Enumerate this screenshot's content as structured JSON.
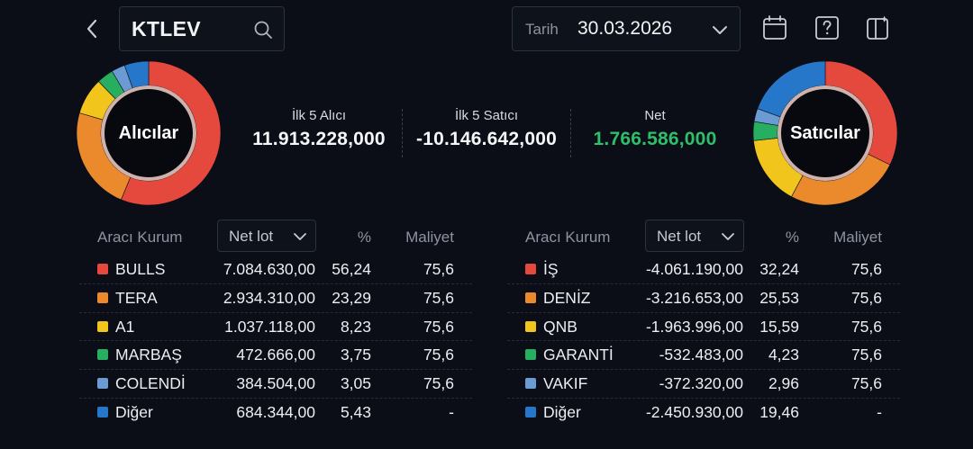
{
  "header": {
    "search_value": "KTLEV",
    "date_label": "Tarih",
    "date_value": "30.03.2026"
  },
  "colors": {
    "red": "#e5483d",
    "orange": "#ea8a2c",
    "yellow": "#f2c51d",
    "green": "#27ae60",
    "lightblue": "#6b9bd2",
    "blue": "#2677c9",
    "net_positive": "#2fbf6a"
  },
  "buyers_chart": {
    "label": "Alıcılar",
    "slices": [
      {
        "name": "BULLS",
        "percent": 56.24,
        "color": "#e5483d"
      },
      {
        "name": "TERA",
        "percent": 23.29,
        "color": "#ea8a2c"
      },
      {
        "name": "A1",
        "percent": 8.23,
        "color": "#f2c51d"
      },
      {
        "name": "MARBAŞ",
        "percent": 3.75,
        "color": "#27ae60"
      },
      {
        "name": "COLENDİ",
        "percent": 3.05,
        "color": "#6b9bd2"
      },
      {
        "name": "Diğer",
        "percent": 5.43,
        "color": "#2677c9"
      }
    ]
  },
  "sellers_chart": {
    "label": "Satıcılar",
    "slices": [
      {
        "name": "İŞ",
        "percent": 32.24,
        "color": "#e5483d"
      },
      {
        "name": "DENİZ",
        "percent": 25.53,
        "color": "#ea8a2c"
      },
      {
        "name": "QNB",
        "percent": 15.59,
        "color": "#f2c51d"
      },
      {
        "name": "GARANTİ",
        "percent": 4.23,
        "color": "#27ae60"
      },
      {
        "name": "VAKIF",
        "percent": 2.96,
        "color": "#6b9bd2"
      },
      {
        "name": "Diğer",
        "percent": 19.46,
        "color": "#2677c9"
      }
    ]
  },
  "summary": {
    "buyers_caption": "İlk 5 Alıcı",
    "buyers_value": "11.913.228,000",
    "sellers_caption": "İlk 5 Satıcı",
    "sellers_value": "-10.146.642,000",
    "net_caption": "Net",
    "net_value": "1.766.586,000"
  },
  "buyers_table": {
    "col_broker": "Aracı Kurum",
    "col_lot": "Net lot",
    "col_pct": "%",
    "col_cost": "Maliyet",
    "rows": [
      {
        "name": "BULLS",
        "lot": "7.084.630,00",
        "pct": "56,24",
        "cost": "75,6",
        "color": "#e5483d"
      },
      {
        "name": "TERA",
        "lot": "2.934.310,00",
        "pct": "23,29",
        "cost": "75,6",
        "color": "#ea8a2c"
      },
      {
        "name": "A1",
        "lot": "1.037.118,00",
        "pct": "8,23",
        "cost": "75,6",
        "color": "#f2c51d"
      },
      {
        "name": "MARBAŞ",
        "lot": "472.666,00",
        "pct": "3,75",
        "cost": "75,6",
        "color": "#27ae60"
      },
      {
        "name": "COLENDİ",
        "lot": "384.504,00",
        "pct": "3,05",
        "cost": "75,6",
        "color": "#6b9bd2"
      },
      {
        "name": "Diğer",
        "lot": "684.344,00",
        "pct": "5,43",
        "cost": "-",
        "color": "#2677c9"
      }
    ]
  },
  "sellers_table": {
    "col_broker": "Aracı Kurum",
    "col_lot": "Net lot",
    "col_pct": "%",
    "col_cost": "Maliyet",
    "rows": [
      {
        "name": "İŞ",
        "lot": "-4.061.190,00",
        "pct": "32,24",
        "cost": "75,6",
        "color": "#e5483d"
      },
      {
        "name": "DENİZ",
        "lot": "-3.216.653,00",
        "pct": "25,53",
        "cost": "75,6",
        "color": "#ea8a2c"
      },
      {
        "name": "QNB",
        "lot": "-1.963.996,00",
        "pct": "15,59",
        "cost": "75,6",
        "color": "#f2c51d"
      },
      {
        "name": "GARANTİ",
        "lot": "-532.483,00",
        "pct": "4,23",
        "cost": "75,6",
        "color": "#27ae60"
      },
      {
        "name": "VAKIF",
        "lot": "-372.320,00",
        "pct": "2,96",
        "cost": "75,6",
        "color": "#6b9bd2"
      },
      {
        "name": "Diğer",
        "lot": "-2.450.930,00",
        "pct": "19,46",
        "cost": "-",
        "color": "#2677c9"
      }
    ]
  },
  "icons": {
    "back": "chevron-left-icon",
    "search": "search-icon",
    "date_dropdown": "chevron-down-icon",
    "calendar": "calendar-icon",
    "help": "help-icon",
    "layout": "layout-switch-icon"
  }
}
